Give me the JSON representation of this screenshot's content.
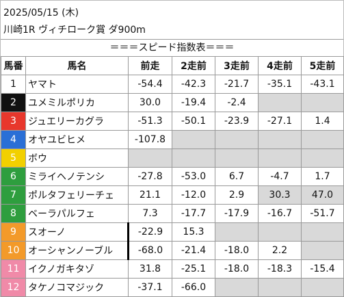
{
  "header": {
    "date": "2025/05/15 (木)",
    "race": "川崎1R ヴィチローク賞 ダ900m",
    "title": "＝＝＝スピード指数表＝＝＝"
  },
  "table": {
    "columns": [
      "馬番",
      "馬名",
      "前走",
      "2走前",
      "3走前",
      "4走前",
      "5走前"
    ],
    "rows": [
      {
        "no": "1",
        "name": "ヤマト",
        "speeds": [
          "-54.4",
          "-42.3",
          "-21.7",
          "-35.1",
          "-43.1"
        ]
      },
      {
        "no": "2",
        "name": "ユメミルポリカ",
        "speeds": [
          "30.0",
          "-19.4",
          "-2.4",
          null,
          null
        ]
      },
      {
        "no": "3",
        "name": "ジュエリーカグラ",
        "speeds": [
          "-51.3",
          "-50.1",
          "-23.9",
          "-27.1",
          "1.4"
        ]
      },
      {
        "no": "4",
        "name": "オヤユビヒメ",
        "speeds": [
          "-107.8",
          null,
          null,
          null,
          null
        ]
      },
      {
        "no": "5",
        "name": "ボウ",
        "speeds": [
          null,
          null,
          null,
          null,
          null
        ]
      },
      {
        "no": "6",
        "name": "ミライヘノテンシ",
        "speeds": [
          "-27.8",
          "-53.0",
          "6.7",
          "-4.7",
          "1.7"
        ]
      },
      {
        "no": "7",
        "name": "ポルタフェリーチェ",
        "speeds": [
          "21.1",
          "-12.0",
          "2.9",
          "30.3",
          "47.0"
        ]
      },
      {
        "no": "8",
        "name": "ベーラパルフェ",
        "speeds": [
          "7.3",
          "-17.7",
          "-17.9",
          "-16.7",
          "-51.7"
        ]
      },
      {
        "no": "9",
        "name": "スオーノ",
        "speeds": [
          "-22.9",
          "15.3",
          null,
          null,
          null
        ]
      },
      {
        "no": "10",
        "name": "オーシャンノーブル",
        "speeds": [
          "-68.0",
          "-21.4",
          "-18.0",
          "2.2",
          null
        ]
      },
      {
        "no": "11",
        "name": "イクノガキタゾ",
        "speeds": [
          "31.8",
          "-25.1",
          "-18.0",
          "-18.3",
          "-15.4"
        ]
      },
      {
        "no": "12",
        "name": "タケノコマジック",
        "speeds": [
          "-37.1",
          "-66.0",
          null,
          null,
          null
        ]
      }
    ]
  }
}
